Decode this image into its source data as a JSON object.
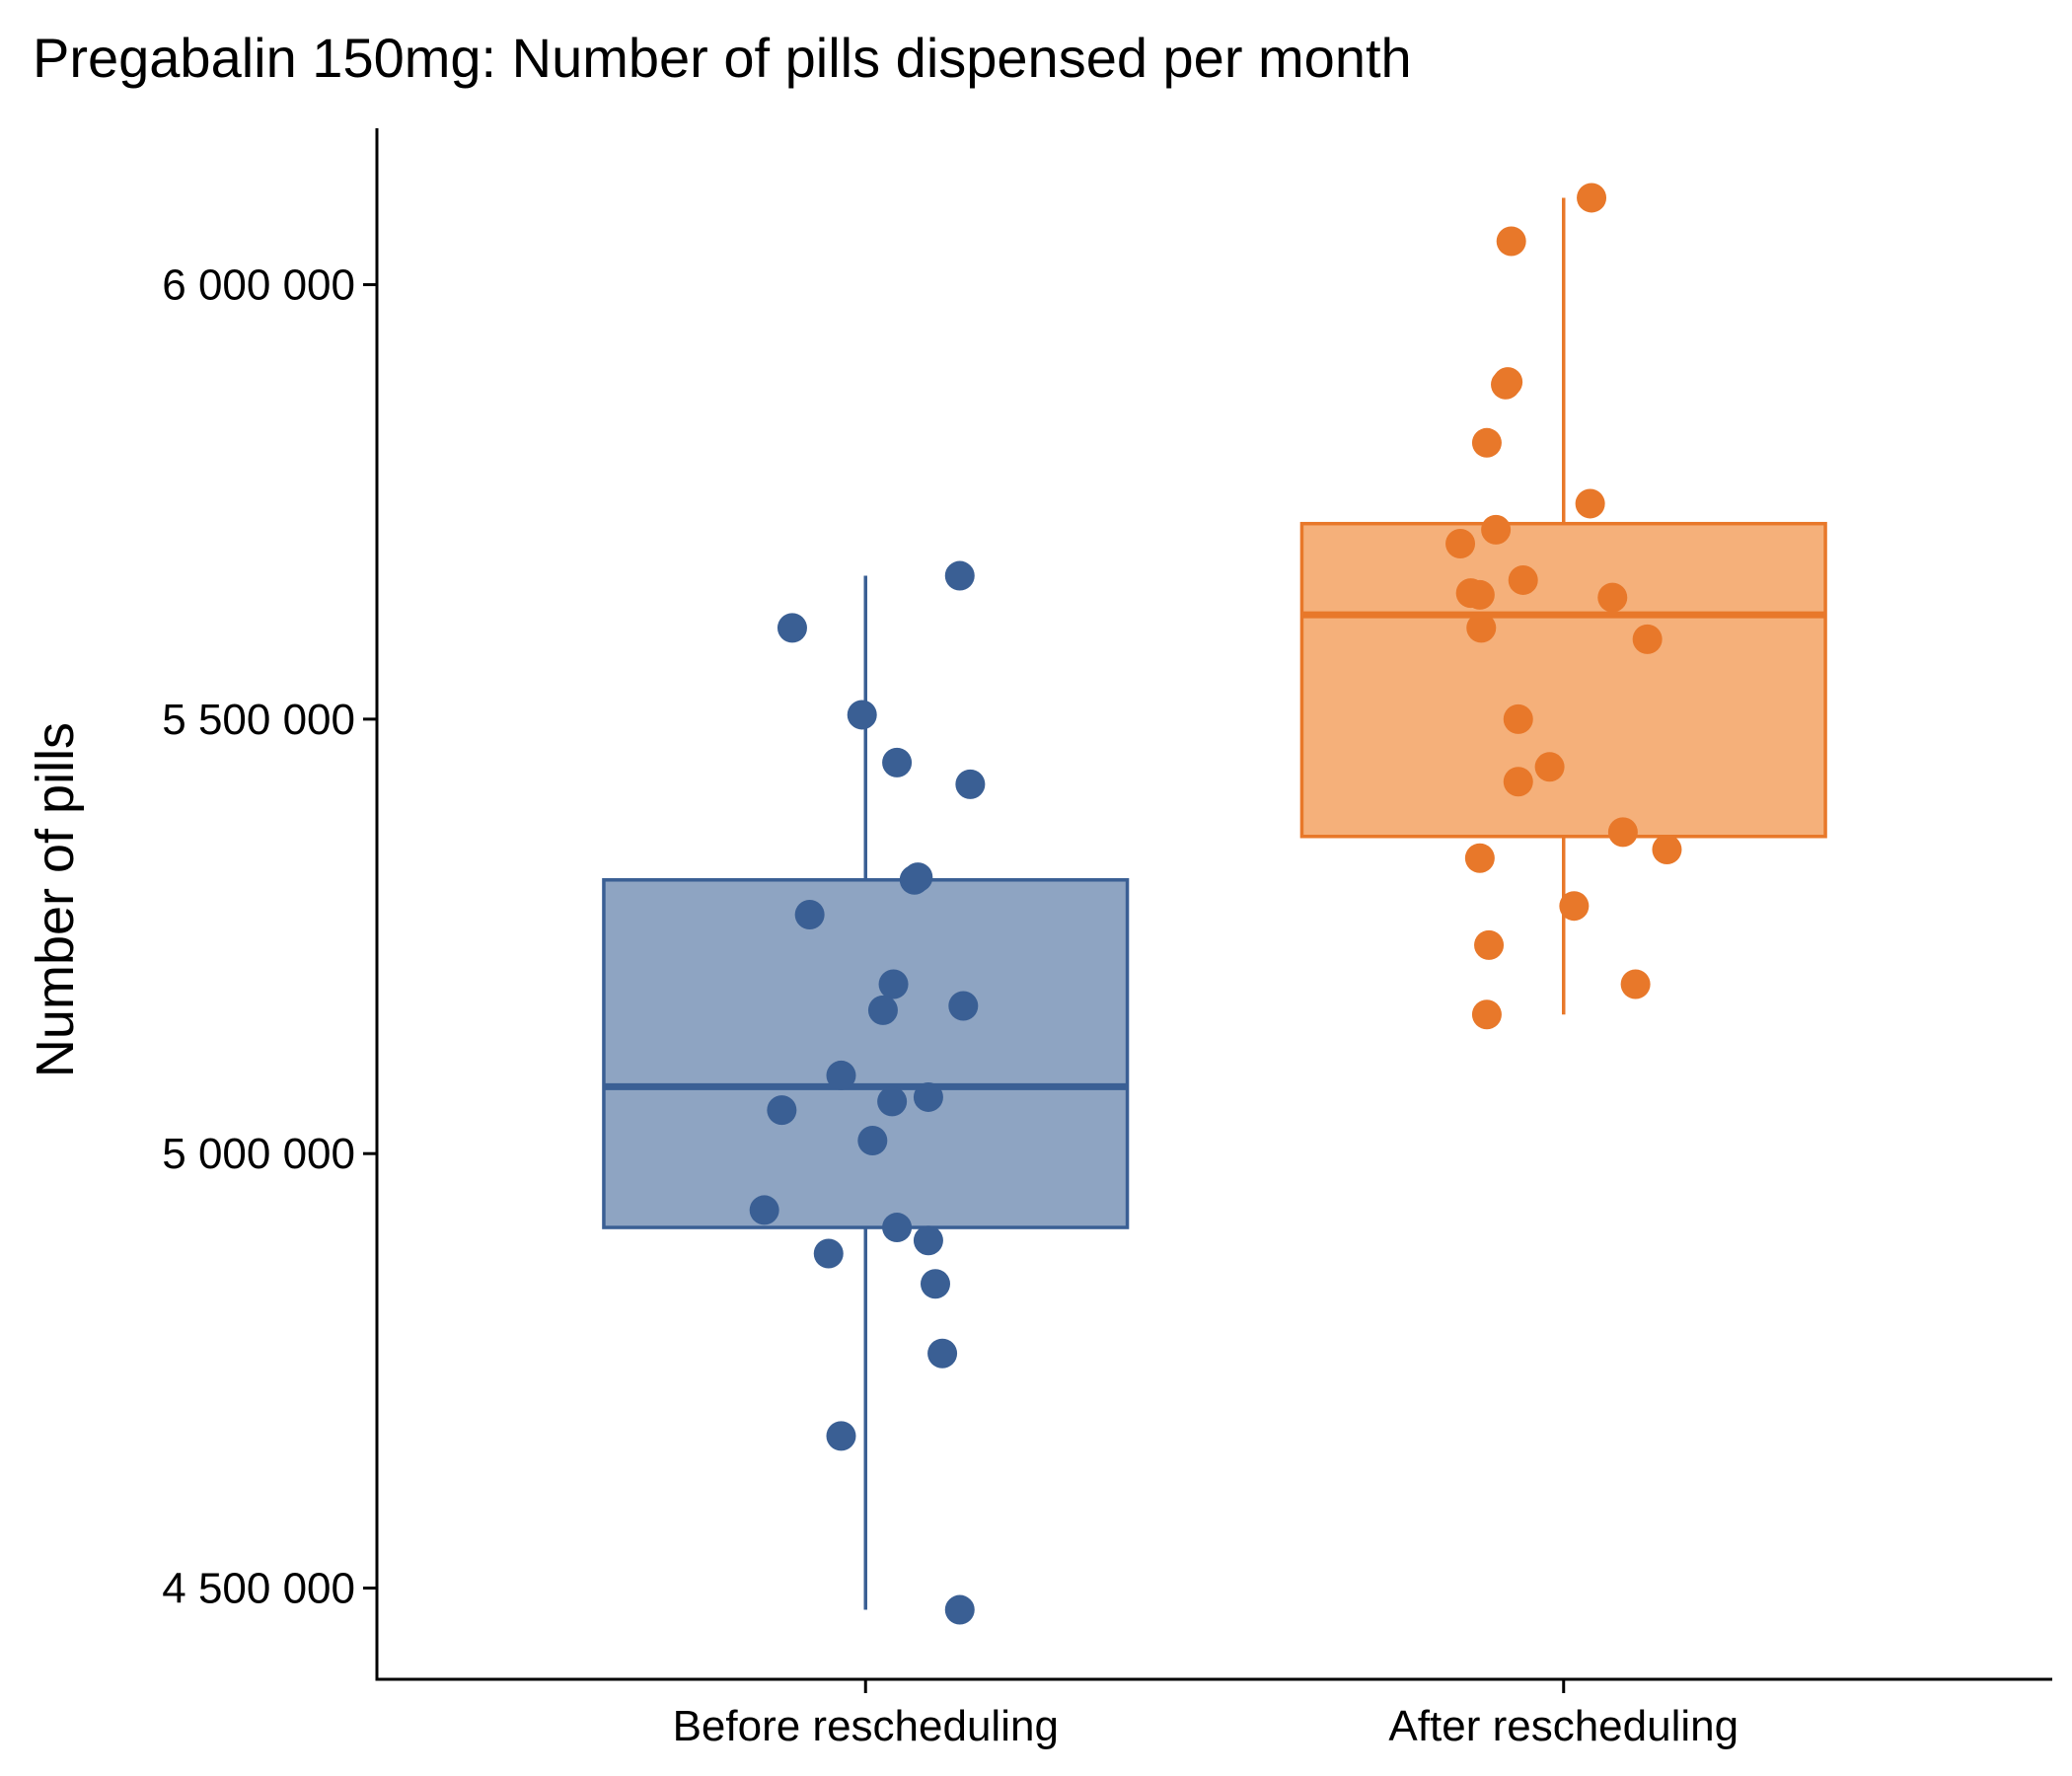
{
  "chart_data": {
    "type": "box",
    "title": "Pregabalin 150mg: Number of pills dispensed per month",
    "xlabel": "",
    "ylabel": "Number of pills",
    "ylim": [
      4395000,
      6180000
    ],
    "yticks": [
      4500000,
      5000000,
      5500000,
      6000000
    ],
    "ytick_labels": [
      "4 500 000",
      "5 000 000",
      "5 500 000",
      "6 000 000"
    ],
    "grid": false,
    "legend": "none",
    "categories": [
      "Before rescheduling",
      "After rescheduling"
    ],
    "groups": [
      {
        "category": "Before rescheduling",
        "color": "#3a5f94",
        "fill": "#8ea4c2",
        "whisker_low": 4475000,
        "q1": 4915000,
        "median": 5077000,
        "q3": 5315000,
        "whisker_high": 5665000,
        "points": [
          {
            "jitter": 0.135,
            "value": 5665000
          },
          {
            "jitter": -0.105,
            "value": 5605000
          },
          {
            "jitter": -0.005,
            "value": 5505000
          },
          {
            "jitter": 0.045,
            "value": 5450000
          },
          {
            "jitter": 0.15,
            "value": 5425000
          },
          {
            "jitter": 0.07,
            "value": 5315000
          },
          {
            "jitter": 0.075,
            "value": 5318000
          },
          {
            "jitter": -0.08,
            "value": 5275000
          },
          {
            "jitter": 0.04,
            "value": 5195000
          },
          {
            "jitter": 0.14,
            "value": 5170000
          },
          {
            "jitter": 0.025,
            "value": 5165000
          },
          {
            "jitter": -0.035,
            "value": 5090000
          },
          {
            "jitter": 0.09,
            "value": 5065000
          },
          {
            "jitter": 0.038,
            "value": 5060000
          },
          {
            "jitter": -0.12,
            "value": 5050000
          },
          {
            "jitter": 0.01,
            "value": 5015000
          },
          {
            "jitter": -0.145,
            "value": 4935000
          },
          {
            "jitter": 0.045,
            "value": 4915000
          },
          {
            "jitter": 0.09,
            "value": 4900000
          },
          {
            "jitter": -0.053,
            "value": 4885000
          },
          {
            "jitter": 0.1,
            "value": 4850000
          },
          {
            "jitter": 0.11,
            "value": 4770000
          },
          {
            "jitter": -0.035,
            "value": 4675000
          },
          {
            "jitter": 0.135,
            "value": 4475000
          }
        ]
      },
      {
        "category": "After rescheduling",
        "color": "#e8782a",
        "fill": "#f5b07a",
        "whisker_low": 5160000,
        "q1": 5365000,
        "median": 5620000,
        "q3": 5725000,
        "whisker_high": 6100000,
        "points": [
          {
            "jitter": 0.04,
            "value": 6100000
          },
          {
            "jitter": -0.075,
            "value": 6050000
          },
          {
            "jitter": -0.083,
            "value": 5885000
          },
          {
            "jitter": -0.08,
            "value": 5888000
          },
          {
            "jitter": -0.11,
            "value": 5818000
          },
          {
            "jitter": 0.038,
            "value": 5748000
          },
          {
            "jitter": -0.097,
            "value": 5718000
          },
          {
            "jitter": -0.148,
            "value": 5702000
          },
          {
            "jitter": -0.058,
            "value": 5660000
          },
          {
            "jitter": -0.133,
            "value": 5645000
          },
          {
            "jitter": -0.12,
            "value": 5643000
          },
          {
            "jitter": 0.07,
            "value": 5640000
          },
          {
            "jitter": -0.118,
            "value": 5605000
          },
          {
            "jitter": 0.12,
            "value": 5592000
          },
          {
            "jitter": -0.065,
            "value": 5500000
          },
          {
            "jitter": -0.02,
            "value": 5445000
          },
          {
            "jitter": -0.065,
            "value": 5428000
          },
          {
            "jitter": 0.085,
            "value": 5370000
          },
          {
            "jitter": 0.148,
            "value": 5350000
          },
          {
            "jitter": -0.12,
            "value": 5340000
          },
          {
            "jitter": 0.015,
            "value": 5285000
          },
          {
            "jitter": -0.107,
            "value": 5240000
          },
          {
            "jitter": 0.103,
            "value": 5195000
          },
          {
            "jitter": -0.11,
            "value": 5160000
          }
        ]
      }
    ]
  }
}
